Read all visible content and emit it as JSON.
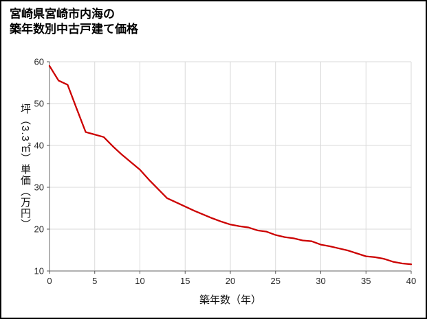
{
  "title": {
    "line1": "宮崎県宮崎市内海の",
    "line2": "築年数別中古戸建て価格"
  },
  "chart_data": {
    "type": "line",
    "title": "宮崎県宮崎市内海の築年数別中古戸建て価格",
    "xlabel": "築年数（年）",
    "ylabel": "坪（3.3㎡）単価（万円）",
    "xlim": [
      0,
      40
    ],
    "ylim": [
      10,
      60
    ],
    "xticks": [
      0,
      5,
      10,
      15,
      20,
      25,
      30,
      35,
      40
    ],
    "yticks": [
      10,
      20,
      30,
      40,
      50,
      60
    ],
    "grid": true,
    "legend": "none",
    "line_color": "#cc0000",
    "grid_color": "#d9d9d9",
    "axis_color": "#808080",
    "tick_label_color": "#262626",
    "x": [
      0,
      1,
      2,
      3,
      4,
      5,
      6,
      7,
      8,
      9,
      10,
      11,
      12,
      13,
      14,
      15,
      16,
      17,
      18,
      19,
      20,
      21,
      22,
      23,
      24,
      25,
      26,
      27,
      28,
      29,
      30,
      31,
      32,
      33,
      34,
      35,
      36,
      37,
      38,
      39,
      40
    ],
    "values": [
      59,
      55.5,
      54.5,
      48.8,
      43.2,
      42.6,
      42,
      39.8,
      37.8,
      36,
      34.2,
      31.8,
      29.6,
      27.4,
      26.4,
      25.4,
      24.4,
      23.5,
      22.6,
      21.8,
      21.1,
      20.7,
      20.4,
      19.7,
      19.4,
      18.6,
      18.1,
      17.8,
      17.3,
      17.1,
      16.3,
      15.9,
      15.4,
      14.9,
      14.2,
      13.5,
      13.3,
      12.9,
      12.2,
      11.8,
      11.6
    ]
  }
}
